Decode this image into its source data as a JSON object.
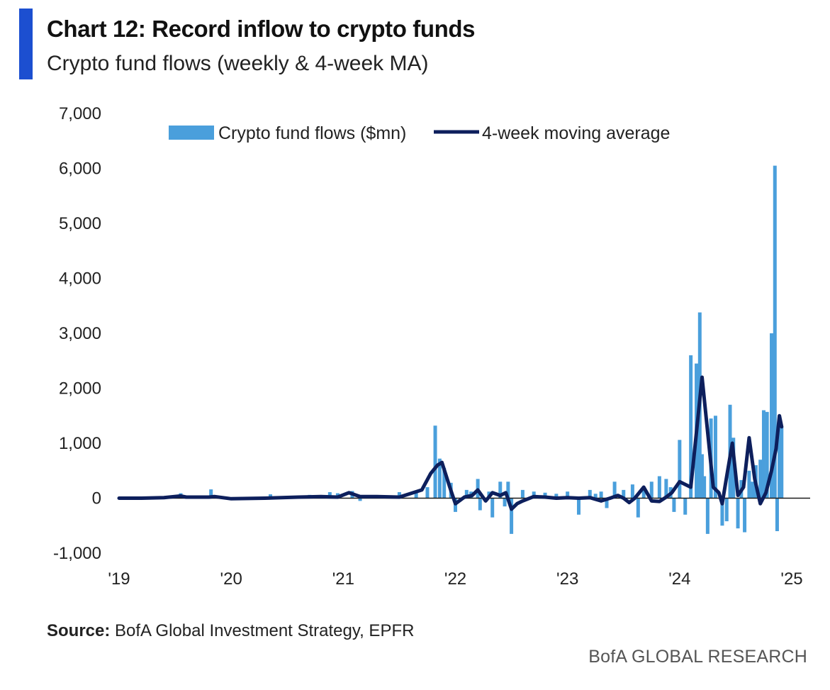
{
  "title": "Chart 12: Record inflow to crypto funds",
  "subtitle": "Crypto fund flows (weekly & 4-week MA)",
  "source_label": "Source:",
  "source_text": " BofA Global Investment Strategy, EPFR",
  "footer": "BofA GLOBAL RESEARCH",
  "colors": {
    "accent": "#1c4fd0",
    "bars": "#4a9fdc",
    "line": "#0d1f5c"
  },
  "chart_data": {
    "type": "bar",
    "title": "",
    "xlabel": "",
    "ylabel": "",
    "ylim": [
      -1000,
      7000
    ],
    "xlim": [
      2019.0,
      2025.0
    ],
    "y_ticks": [
      7000,
      6000,
      5000,
      4000,
      3000,
      2000,
      1000,
      0,
      -1000
    ],
    "y_tick_labels": [
      "7,000",
      "6,000",
      "5,000",
      "4,000",
      "3,000",
      "2,000",
      "1,000",
      "0",
      "-1,000"
    ],
    "x_ticks": [
      2019,
      2020,
      2021,
      2022,
      2023,
      2024,
      2025
    ],
    "x_tick_labels": [
      "'19",
      "'20",
      "'21",
      "'22",
      "'23",
      "'24",
      "'25"
    ],
    "legend_position": "top",
    "series": [
      {
        "name": "Crypto fund flows ($mn)",
        "type": "bar",
        "x": [
          2019.55,
          2019.82,
          2020.35,
          2020.7,
          2020.88,
          2020.95,
          2021.08,
          2021.15,
          2021.5,
          2021.65,
          2021.75,
          2021.82,
          2021.86,
          2021.9,
          2021.96,
          2022.0,
          2022.1,
          2022.14,
          2022.2,
          2022.22,
          2022.3,
          2022.33,
          2022.4,
          2022.44,
          2022.47,
          2022.5,
          2022.6,
          2022.7,
          2022.8,
          2022.9,
          2023.0,
          2023.1,
          2023.2,
          2023.25,
          2023.3,
          2023.35,
          2023.42,
          2023.5,
          2023.58,
          2023.63,
          2023.68,
          2023.75,
          2023.82,
          2023.88,
          2023.92,
          2023.95,
          2024.0,
          2024.05,
          2024.1,
          2024.15,
          2024.18,
          2024.2,
          2024.22,
          2024.25,
          2024.28,
          2024.32,
          2024.38,
          2024.42,
          2024.45,
          2024.48,
          2024.52,
          2024.55,
          2024.58,
          2024.62,
          2024.65,
          2024.68,
          2024.72,
          2024.75,
          2024.78,
          2024.82,
          2024.85,
          2024.87,
          2024.89,
          2024.91
        ],
        "values": [
          90,
          160,
          70,
          60,
          110,
          90,
          130,
          -50,
          110,
          120,
          200,
          1320,
          720,
          550,
          280,
          -250,
          150,
          120,
          350,
          -220,
          120,
          -350,
          300,
          -150,
          300,
          -650,
          150,
          120,
          100,
          80,
          120,
          -300,
          150,
          80,
          120,
          -180,
          300,
          150,
          250,
          -350,
          200,
          300,
          400,
          350,
          200,
          -250,
          1060,
          -300,
          2600,
          2450,
          3380,
          800,
          400,
          -650,
          1450,
          1500,
          -500,
          -420,
          1700,
          1100,
          -550,
          330,
          -620,
          500,
          300,
          600,
          700,
          1600,
          1570,
          3000,
          6050,
          -600,
          1500,
          1300
        ]
      },
      {
        "name": "4-week moving average",
        "type": "line",
        "x": [
          2019.0,
          2019.2,
          2019.4,
          2019.55,
          2019.6,
          2019.8,
          2019.85,
          2020.0,
          2020.3,
          2020.6,
          2020.8,
          2020.95,
          2021.05,
          2021.15,
          2021.3,
          2021.5,
          2021.7,
          2021.78,
          2021.84,
          2021.88,
          2021.95,
          2022.0,
          2022.08,
          2022.15,
          2022.2,
          2022.27,
          2022.33,
          2022.4,
          2022.45,
          2022.5,
          2022.55,
          2022.6,
          2022.7,
          2022.8,
          2022.9,
          2023.0,
          2023.1,
          2023.2,
          2023.3,
          2023.38,
          2023.45,
          2023.5,
          2023.55,
          2023.6,
          2023.68,
          2023.75,
          2023.82,
          2023.88,
          2023.93,
          2024.0,
          2024.05,
          2024.1,
          2024.15,
          2024.2,
          2024.25,
          2024.3,
          2024.35,
          2024.38,
          2024.42,
          2024.47,
          2024.52,
          2024.57,
          2024.62,
          2024.67,
          2024.72,
          2024.77,
          2024.82,
          2024.86,
          2024.89,
          2024.91
        ],
        "values": [
          0,
          0,
          10,
          40,
          20,
          20,
          30,
          -10,
          0,
          20,
          30,
          20,
          100,
          30,
          30,
          20,
          150,
          450,
          600,
          650,
          200,
          -100,
          20,
          50,
          150,
          -50,
          100,
          50,
          100,
          -200,
          -100,
          -50,
          30,
          20,
          0,
          10,
          0,
          10,
          -50,
          0,
          50,
          0,
          -80,
          0,
          200,
          -50,
          -60,
          20,
          100,
          300,
          250,
          200,
          1200,
          2200,
          1200,
          200,
          100,
          -100,
          400,
          1000,
          50,
          200,
          1100,
          350,
          -100,
          100,
          500,
          900,
          1500,
          1300
        ]
      }
    ]
  }
}
